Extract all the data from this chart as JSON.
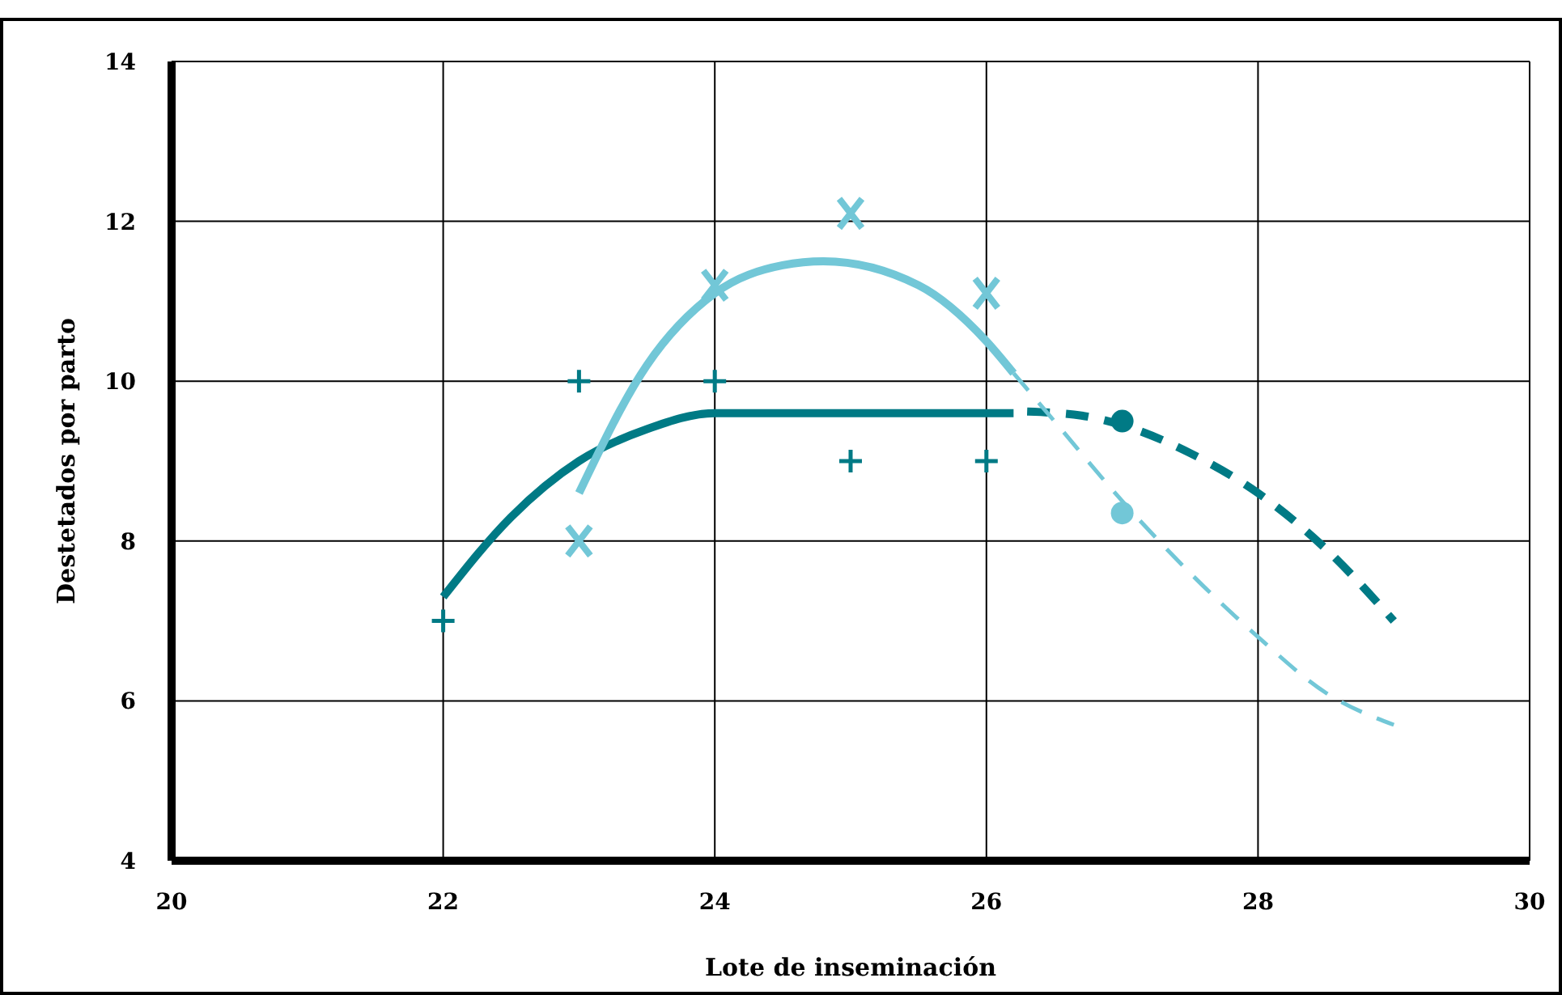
{
  "chart_data": {
    "type": "scatter",
    "xlabel": "Lote de inseminación",
    "ylabel": "Destetados por parto",
    "xlim": [
      20,
      30
    ],
    "xticks": [
      20,
      22,
      24,
      26,
      28,
      30
    ],
    "ylim": [
      4,
      14
    ],
    "yticks": [
      4,
      6,
      8,
      10,
      12,
      14
    ],
    "grid": true,
    "series": [
      {
        "type": "line",
        "color": "#007a85",
        "line_style": "solid",
        "marker": "none",
        "x": [
          22,
          22.5,
          23,
          23.5,
          24,
          25,
          26.2
        ],
        "values": [
          7.3,
          8.3,
          9.0,
          9.4,
          9.6,
          9.6,
          9.6
        ]
      },
      {
        "type": "line",
        "color": "#007a85",
        "line_style": "dashed",
        "marker": "none",
        "x": [
          26.3,
          26.7,
          27,
          27.5,
          28,
          28.5,
          29
        ],
        "values": [
          9.62,
          9.57,
          9.45,
          9.1,
          8.6,
          7.9,
          7.0
        ]
      },
      {
        "type": "line",
        "color": "#72c7d7",
        "line_style": "solid",
        "marker": "none",
        "x": [
          23,
          23.5,
          24,
          24.5,
          24.8,
          25.5,
          26,
          26.2
        ],
        "values": [
          8.6,
          10.2,
          11.1,
          11.45,
          11.5,
          11.2,
          10.5,
          10.1
        ]
      },
      {
        "type": "line",
        "color": "#72c7d7",
        "line_style": "dashed",
        "marker": "none",
        "x": [
          26.2,
          26.5,
          27,
          27.5,
          28,
          28.5,
          29
        ],
        "values": [
          10.1,
          9.5,
          8.5,
          7.6,
          6.8,
          6.1,
          5.7
        ]
      },
      {
        "color": "#007a85",
        "marker": "cross",
        "x": [
          22,
          23,
          24,
          25,
          26
        ],
        "values": [
          7,
          10,
          10,
          9,
          9
        ]
      },
      {
        "color": "#72c7d7",
        "marker": "x",
        "x": [
          23,
          24,
          25,
          26
        ],
        "values": [
          8,
          11.2,
          12.1,
          11.1
        ]
      },
      {
        "color": "#007a85",
        "marker": "circle",
        "x": [
          27
        ],
        "values": [
          9.5
        ]
      },
      {
        "color": "#72c7d7",
        "marker": "circle",
        "x": [
          27
        ],
        "values": [
          8.35
        ]
      }
    ]
  }
}
